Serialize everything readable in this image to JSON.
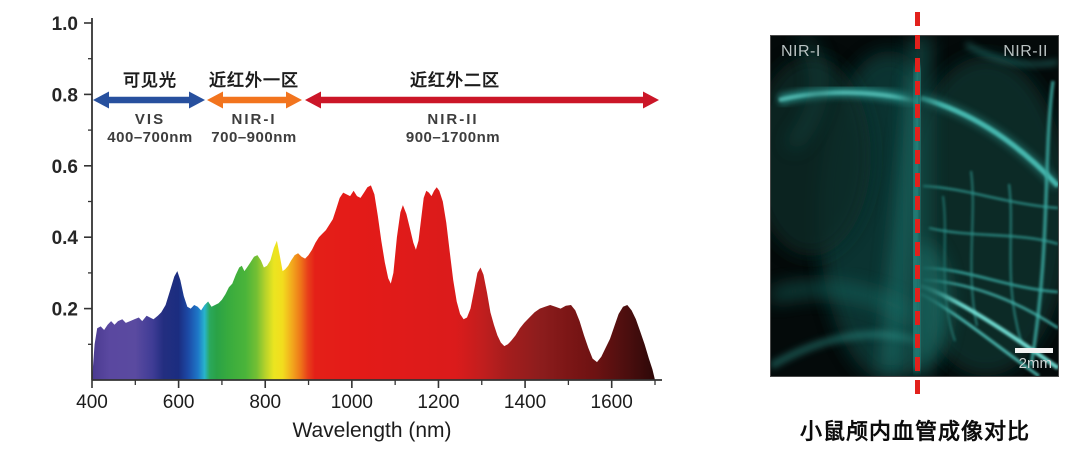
{
  "chart_data": {
    "type": "area",
    "title": "",
    "xlabel": "Wavelength (nm)",
    "ylabel": "",
    "xlim": [
      400,
      1700
    ],
    "ylim": [
      0,
      1.0
    ],
    "x_ticks": [
      400,
      600,
      800,
      1000,
      1200,
      1400,
      1600
    ],
    "y_ticks": [
      0.2,
      0.4,
      0.6,
      0.8,
      1.0
    ],
    "grid": false,
    "x": [
      400,
      406,
      412,
      420,
      428,
      436,
      444,
      452,
      460,
      470,
      478,
      488,
      498,
      508,
      516,
      526,
      534,
      542,
      552,
      560,
      570,
      580,
      590,
      597,
      604,
      612,
      620,
      628,
      636,
      644,
      652,
      660,
      668,
      676,
      684,
      692,
      700,
      708,
      716,
      724,
      732,
      740,
      746,
      752,
      758,
      766,
      774,
      782,
      790,
      797,
      804,
      812,
      820,
      827,
      834,
      840,
      846,
      853,
      860,
      868,
      876,
      884,
      892,
      900,
      908,
      916,
      924,
      932,
      940,
      948,
      956,
      964,
      972,
      980,
      988,
      996,
      1004,
      1012,
      1020,
      1028,
      1036,
      1044,
      1052,
      1060,
      1068,
      1076,
      1084,
      1090,
      1096,
      1104,
      1112,
      1118,
      1126,
      1134,
      1142,
      1148,
      1154,
      1160,
      1166,
      1172,
      1178,
      1184,
      1190,
      1196,
      1202,
      1210,
      1218,
      1226,
      1234,
      1242,
      1250,
      1258,
      1266,
      1274,
      1282,
      1290,
      1297,
      1304,
      1312,
      1320,
      1328,
      1336,
      1344,
      1352,
      1360,
      1368,
      1378,
      1388,
      1398,
      1410,
      1422,
      1434,
      1446,
      1458,
      1470,
      1482,
      1494,
      1506,
      1516,
      1526,
      1536,
      1546,
      1556,
      1566,
      1576,
      1586,
      1596,
      1606,
      1616,
      1626,
      1636,
      1646,
      1656,
      1666,
      1676,
      1686,
      1694,
      1700
    ],
    "y": [
      0.0,
      0.1,
      0.145,
      0.15,
      0.14,
      0.155,
      0.165,
      0.155,
      0.165,
      0.17,
      0.16,
      0.165,
      0.17,
      0.175,
      0.165,
      0.18,
      0.175,
      0.17,
      0.18,
      0.19,
      0.21,
      0.25,
      0.29,
      0.305,
      0.28,
      0.235,
      0.205,
      0.2,
      0.21,
      0.205,
      0.195,
      0.21,
      0.22,
      0.205,
      0.21,
      0.215,
      0.225,
      0.24,
      0.26,
      0.27,
      0.295,
      0.315,
      0.32,
      0.305,
      0.315,
      0.33,
      0.345,
      0.35,
      0.335,
      0.315,
      0.32,
      0.335,
      0.37,
      0.39,
      0.345,
      0.305,
      0.31,
      0.32,
      0.335,
      0.35,
      0.355,
      0.345,
      0.34,
      0.35,
      0.365,
      0.385,
      0.4,
      0.41,
      0.42,
      0.435,
      0.45,
      0.48,
      0.51,
      0.525,
      0.52,
      0.515,
      0.53,
      0.515,
      0.51,
      0.525,
      0.54,
      0.545,
      0.52,
      0.46,
      0.39,
      0.33,
      0.285,
      0.27,
      0.3,
      0.4,
      0.47,
      0.49,
      0.465,
      0.425,
      0.385,
      0.365,
      0.39,
      0.45,
      0.51,
      0.53,
      0.525,
      0.515,
      0.53,
      0.54,
      0.53,
      0.5,
      0.44,
      0.36,
      0.28,
      0.22,
      0.185,
      0.17,
      0.175,
      0.2,
      0.25,
      0.3,
      0.315,
      0.295,
      0.245,
      0.19,
      0.155,
      0.125,
      0.105,
      0.095,
      0.1,
      0.11,
      0.125,
      0.145,
      0.16,
      0.175,
      0.19,
      0.2,
      0.205,
      0.21,
      0.205,
      0.2,
      0.208,
      0.21,
      0.195,
      0.165,
      0.125,
      0.09,
      0.06,
      0.05,
      0.065,
      0.09,
      0.115,
      0.15,
      0.185,
      0.205,
      0.21,
      0.195,
      0.17,
      0.135,
      0.1,
      0.06,
      0.03,
      0.0
    ],
    "gradient_stops": [
      [
        400,
        "#4a3a90"
      ],
      [
        440,
        "#5a48a0"
      ],
      [
        500,
        "#5a4aa0"
      ],
      [
        540,
        "#3f3c95"
      ],
      [
        565,
        "#232e80"
      ],
      [
        600,
        "#1b2d80"
      ],
      [
        622,
        "#1c4aa6"
      ],
      [
        645,
        "#1e78c8"
      ],
      [
        660,
        "#28b4cc"
      ],
      [
        672,
        "#2aa85c"
      ],
      [
        688,
        "#2aa246"
      ],
      [
        715,
        "#38ab3e"
      ],
      [
        755,
        "#4bb43a"
      ],
      [
        780,
        "#73bf34"
      ],
      [
        800,
        "#b5d22b"
      ],
      [
        820,
        "#ebe520"
      ],
      [
        840,
        "#f2dd1e"
      ],
      [
        862,
        "#f2a81d"
      ],
      [
        882,
        "#ee7519"
      ],
      [
        898,
        "#e8401a"
      ],
      [
        915,
        "#e42018"
      ],
      [
        1000,
        "#e41b18"
      ],
      [
        1240,
        "#db1b1b"
      ],
      [
        1300,
        "#c21e1e"
      ],
      [
        1360,
        "#a41d1d"
      ],
      [
        1430,
        "#8e1d1d"
      ],
      [
        1500,
        "#7c1616"
      ],
      [
        1560,
        "#6e1212"
      ],
      [
        1610,
        "#571010"
      ],
      [
        1660,
        "#400c0c"
      ],
      [
        1700,
        "#2d0808"
      ]
    ],
    "regions": [
      {
        "label_cn": "可见光",
        "label_en": "VIS",
        "range": "400–700nm",
        "arrow_color": "#27509e",
        "start_nm": 400,
        "end_nm": 700
      },
      {
        "label_cn": "近红外一区",
        "label_en": "NIR-I",
        "range": "700–900nm",
        "arrow_color": "#f2741e",
        "start_nm": 700,
        "end_nm": 900
      },
      {
        "label_cn": "近红外二区",
        "label_en": "NIR-II",
        "range": "900–1700nm",
        "arrow_color": "#cb1628",
        "start_nm": 900,
        "end_nm": 1700
      }
    ]
  },
  "panel": {
    "label_left": "NIR-I",
    "label_right": "NIR-II",
    "scale_bar_label": "2mm",
    "divider_color": "#e2211c",
    "vessel_color": "#3fd9d2",
    "caption": "小鼠颅内血管成像对比"
  }
}
